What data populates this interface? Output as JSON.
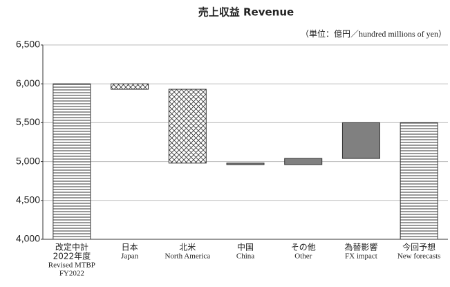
{
  "chart_data": {
    "type": "waterfall",
    "title": "売上収益 Revenue",
    "subtitle": "（単位：億円／hundred millions of yen）",
    "categories_ja": [
      [
        "改定中計",
        "2022年度"
      ],
      [
        "日本"
      ],
      [
        "北米"
      ],
      [
        "中国"
      ],
      [
        "その他"
      ],
      [
        "為替影響"
      ],
      [
        "今回予想"
      ]
    ],
    "categories": [
      [
        "Revised MTBP",
        "FY2022"
      ],
      [
        "Japan"
      ],
      [
        "North America"
      ],
      [
        "China"
      ],
      [
        "Other"
      ],
      [
        "FX impact"
      ],
      [
        "New forecasts"
      ]
    ],
    "kinds": [
      "total",
      "delta",
      "delta",
      "delta",
      "delta",
      "delta",
      "total"
    ],
    "values": [
      6000,
      -70,
      -950,
      -20,
      80,
      460,
      5500
    ],
    "fills": [
      "hlines",
      "crosshatch",
      "crosshatch",
      "#808080",
      "#808080",
      "#808080",
      "hlines"
    ],
    "ylim": [
      4000,
      6500
    ],
    "yticks": [
      {
        "value": 4000,
        "label": "4,000"
      },
      {
        "value": 4500,
        "label": "4,500"
      },
      {
        "value": 5000,
        "label": "5,000"
      },
      {
        "value": 5500,
        "label": "5,500"
      },
      {
        "value": 6000,
        "label": "6,000"
      },
      {
        "value": 6500,
        "label": "6,500"
      }
    ],
    "grid": true
  }
}
